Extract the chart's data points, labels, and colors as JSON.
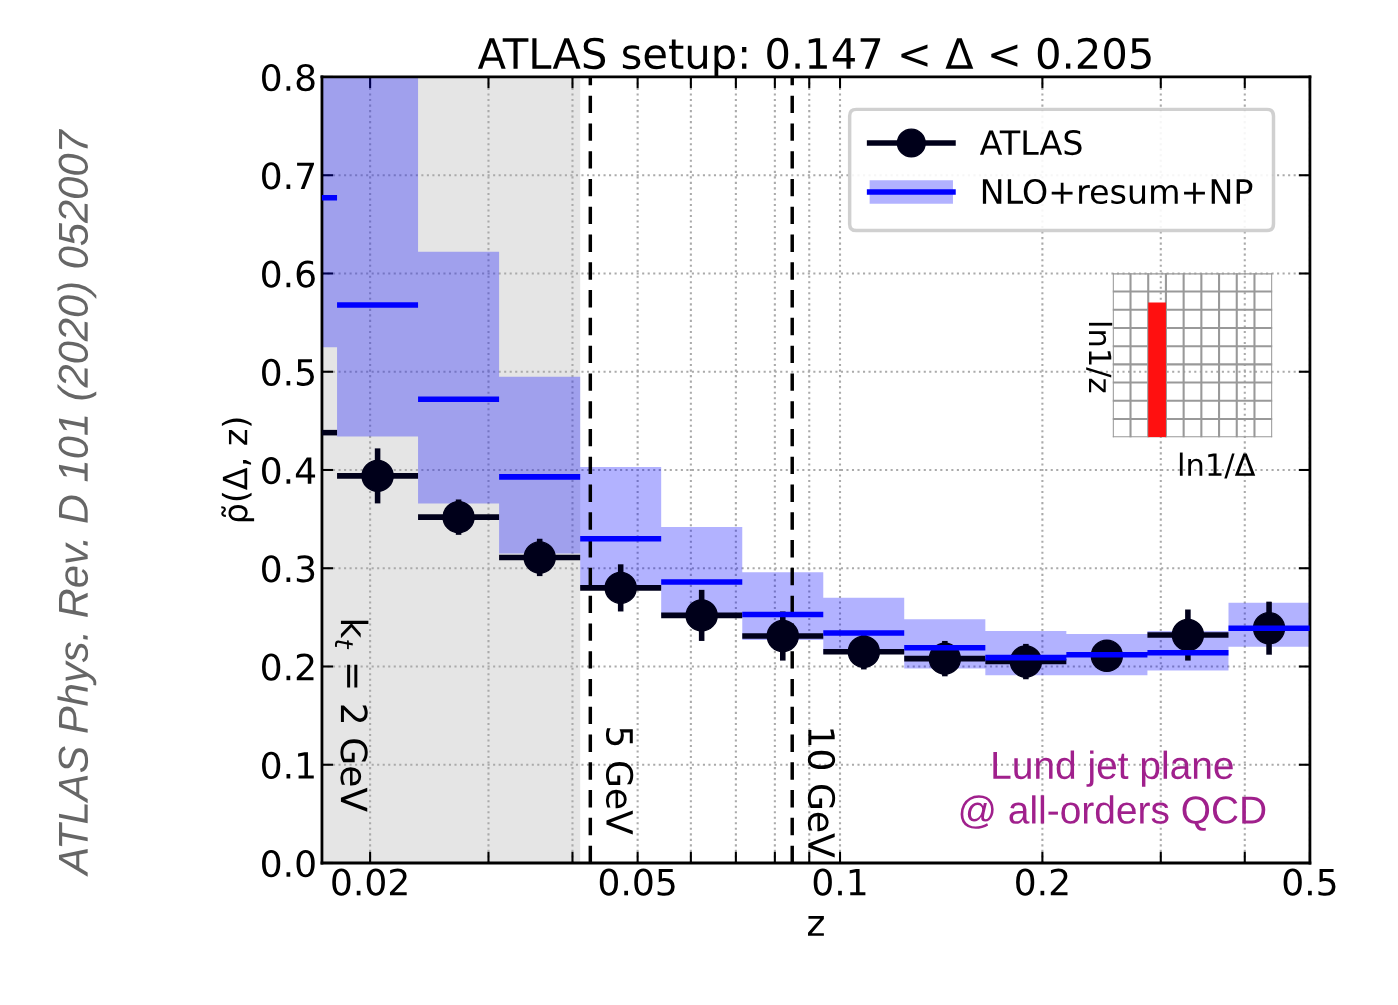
{
  "chart_data": {
    "type": "scatter",
    "title": "ATLAS setup: 0.147 < Δ < 0.205",
    "xlabel": "z",
    "ylabel": "ρ̃(Δ, z)",
    "log": "x",
    "xlim": [
      0.01696,
      0.5
    ],
    "ylim": [
      0,
      0.8
    ],
    "xticks": [
      0.02,
      {
        "value": 0.03,
        "label": null
      },
      {
        "value": 0.04,
        "label": null
      },
      0.05,
      {
        "value": 0.06,
        "label": null
      },
      {
        "value": 0.07,
        "label": null
      },
      {
        "value": 0.08,
        "label": null
      },
      {
        "value": 0.09,
        "label": null
      },
      0.1,
      0.2,
      {
        "value": 0.3,
        "label": null
      },
      {
        "value": 0.4,
        "label": null
      },
      0.5
    ],
    "yticks": [
      {
        "value": 0,
        "label": "0.0"
      },
      0.1,
      0.2,
      0.3,
      0.4,
      0.5,
      0.6,
      0.7,
      0.8
    ],
    "grid": true,
    "legend": "top right",
    "series": [
      {
        "name": "ATLAS",
        "color": "#00001a",
        "marker": "circle",
        "x": [
          0.02052,
          0.02708,
          0.03575,
          0.04718,
          0.06226,
          0.0822,
          0.1085,
          0.1432,
          0.189,
          0.2494,
          0.3292,
          0.4347
        ],
        "values": [
          0.394,
          0.352,
          0.311,
          0.28,
          0.252,
          0.231,
          0.215,
          0.208,
          0.205,
          0.211,
          0.232,
          0.239
        ],
        "errors": [
          0.028,
          0.018,
          0.019,
          0.024,
          0.026,
          0.025,
          0.018,
          0.018,
          0.018,
          0.016,
          0.026,
          0.027
        ],
        "xerrors": [
          [
            0.01786,
            0.02357
          ],
          [
            0.02357,
            0.03111
          ],
          [
            0.03111,
            0.04107
          ],
          [
            0.04107,
            0.0542
          ],
          [
            0.0542,
            0.07155
          ],
          [
            0.07155,
            0.09443
          ],
          [
            0.09443,
            0.1246
          ],
          [
            0.1246,
            0.1645
          ],
          [
            0.1645,
            0.2171
          ],
          null,
          [
            0.2866,
            0.3783
          ],
          null
        ]
      },
      {
        "name": "NLO+resum+NP",
        "type": "step",
        "color": "#0000ff",
        "marker": "none",
        "x": [
          0.01696,
          0.01786,
          0.02357,
          0.03111,
          0.04107,
          0.0542,
          0.07155,
          0.09443,
          0.1246,
          0.1645,
          0.2171,
          0.2866,
          0.3783,
          0.4994
        ],
        "values": [
          0.677,
          0.568,
          0.472,
          0.393,
          0.33,
          0.286,
          0.253,
          0.234,
          0.219,
          0.209,
          0.212,
          0.214,
          0.239,
          0.239
        ],
        "lower": [
          0.525,
          0.434,
          0.366,
          0.315,
          0.279,
          0.251,
          0.227,
          0.213,
          0.198,
          0.191,
          0.191,
          0.196,
          0.22,
          0.22
        ],
        "upper": [
          0.8,
          0.8,
          0.622,
          0.495,
          0.403,
          0.342,
          0.296,
          0.27,
          0.248,
          0.236,
          0.233,
          0.236,
          0.265,
          0.265
        ]
      },
      {
        "type": "step",
        "color": "#00001a",
        "marker": "none",
        "x": [
          0.01696,
          0.01786
        ],
        "values": [
          0.438,
          0.438
        ]
      }
    ],
    "bands": [
      {
        "axis": "x",
        "from": 0.01696,
        "to": 0.04107,
        "label": "k$_{t}$ = 2 GeV",
        "color": "#e5e5e5"
      }
    ],
    "ref_lines": [
      {
        "axis": "x",
        "value": 0.04252,
        "label": "5 GeV",
        "color": "#000000",
        "line_style": "dashed"
      },
      {
        "axis": "x",
        "value": 0.0849,
        "label": "10 GeV",
        "color": "#000000",
        "line_style": "dashed"
      }
    ],
    "annotations": [
      "Lund jet plane\n@ all-orders QCD",
      "ATLAS Phys. Rev. D 101 (2020) 052007",
      "ln1/z",
      "ln1/Δ"
    ]
  }
}
